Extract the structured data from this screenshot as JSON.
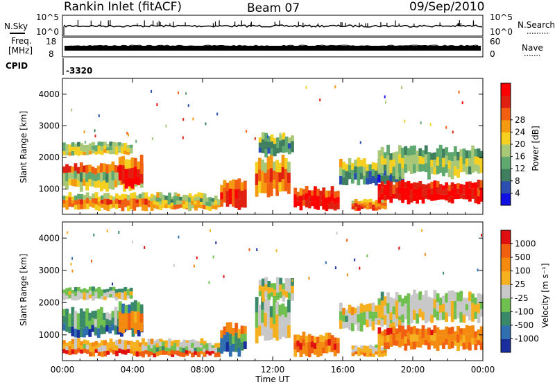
{
  "header": {
    "station": "Rankin Inlet (fitACF)",
    "beam": "Beam 07",
    "date": "09/Sep/2010"
  },
  "side_labels": {
    "nsky": "N.Sky",
    "nsky_scale_top": "10^5",
    "nsky_scale_bottom": "10^0",
    "nsearch": "N.Search",
    "nsearch_scale_top": "10^5",
    "nsearch_scale_bottom": "10^0",
    "freq": "Freq.",
    "freq_unit": "[MHz]",
    "freq_top": "18",
    "freq_bottom": "8",
    "nave": "Nave",
    "nave_top": "60",
    "nave_bottom": "0",
    "cpid_label": "CPID",
    "cpid_value": "-3320"
  },
  "colors": {
    "power_scale": [
      "#1010e0",
      "#2a4fb0",
      "#3f7f5f",
      "#5fa870",
      "#a8c878",
      "#f5d020",
      "#f59a10",
      "#f06010",
      "#e02010",
      "#ff0000"
    ],
    "velocity_scale": [
      "#1a2ea0",
      "#2f6fb0",
      "#3a8a6a",
      "#70c050",
      "#c8c8c8",
      "#f5b020",
      "#f58a10",
      "#f06010",
      "#e01010"
    ]
  },
  "chart_data": [
    {
      "type": "heatmap",
      "name": "power",
      "ylabel": "Slant Range [km]",
      "yticks": [
        "1000",
        "2000",
        "3000",
        "4000"
      ],
      "ylim": [
        200,
        4500
      ],
      "colorbar_label": "Power [dB]",
      "colorbar_ticks": [
        "4",
        "8",
        "12",
        "16",
        "20",
        "24",
        "28"
      ],
      "colorbar_range": [
        0,
        32
      ]
    },
    {
      "type": "heatmap",
      "name": "velocity",
      "ylabel": "Slant Range [km]",
      "yticks": [
        "1000",
        "2000",
        "3000",
        "4000"
      ],
      "ylim": [
        200,
        4500
      ],
      "colorbar_label": "Velocity [m s⁻¹]",
      "colorbar_ticks": [
        "-1000",
        "-500",
        "-100",
        "-25",
        "25",
        "100",
        "500",
        "1000"
      ]
    }
  ],
  "xaxis": {
    "label": "Time UT",
    "ticks": [
      "00:00",
      "04:00",
      "08:00",
      "12:00",
      "16:00",
      "20:00",
      "00:00"
    ]
  }
}
